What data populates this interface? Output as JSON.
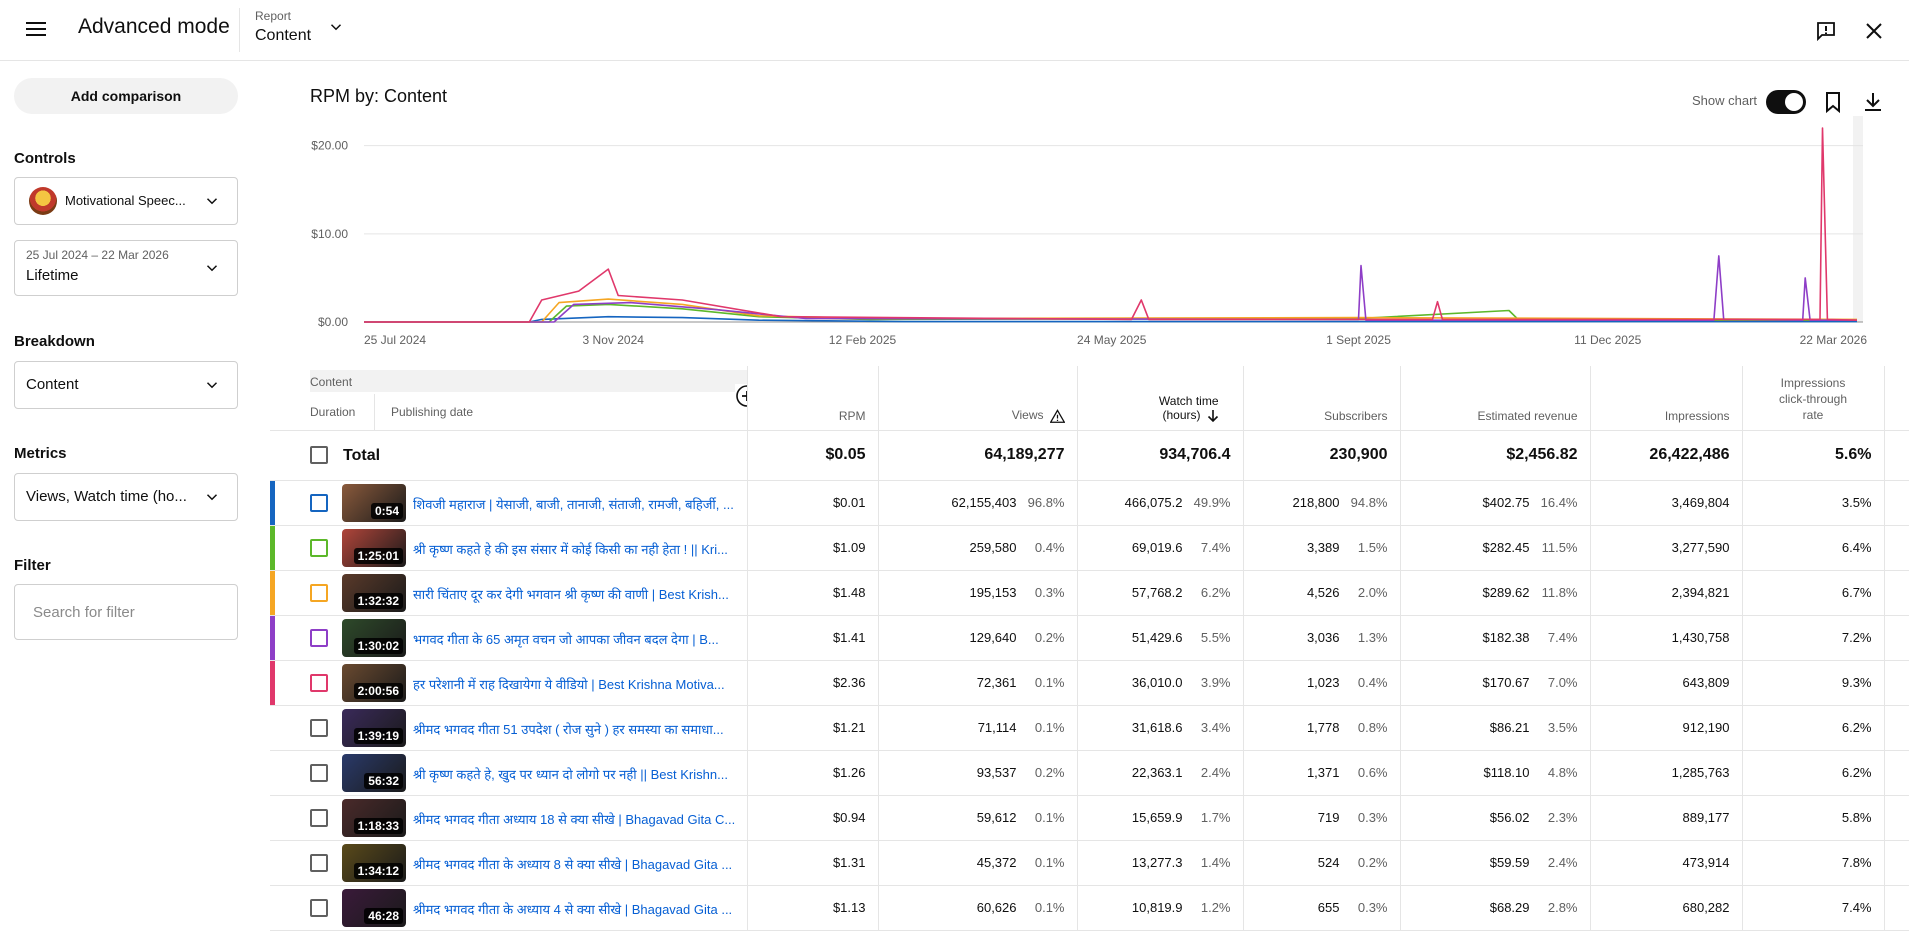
{
  "header": {
    "app_title": "Advanced mode",
    "report_label": "Report",
    "report_value": "Content"
  },
  "sidebar": {
    "add_comparison": "Add comparison",
    "controls_heading": "Controls",
    "channel_name": "Motivational Speec...",
    "date_range": "25 Jul 2024 – 22 Mar 2026",
    "date_preset": "Lifetime",
    "breakdown_heading": "Breakdown",
    "breakdown_value": "Content",
    "metrics_heading": "Metrics",
    "metrics_value": "Views, Watch time (ho...",
    "filter_heading": "Filter",
    "filter_placeholder": "Search for filter"
  },
  "chart": {
    "title": "RPM by: Content",
    "show_chart_label": "Show chart"
  },
  "chart_data": {
    "type": "line",
    "title": "RPM by: Content",
    "y_ticks": [
      "$20.00",
      "$10.00",
      "$0.00"
    ],
    "ylim": [
      0,
      22
    ],
    "x_ticks": [
      "25 Jul 2024",
      "3 Nov 2024",
      "12 Feb 2025",
      "24 May 2025",
      "1 Sept 2025",
      "11 Dec 2025",
      "22 Mar 2026"
    ],
    "x_start": "2024-07-25",
    "x_end": "2026-03-22",
    "series_colors": [
      "#1565c0",
      "#5cb82a",
      "#f5a623",
      "#8e3ec7",
      "#e0386b"
    ],
    "series": [
      {
        "color": "#1565c0",
        "points": [
          [
            "2024-07-25",
            0
          ],
          [
            "2024-09-30",
            0
          ],
          [
            "2024-10-05",
            0.3
          ],
          [
            "2024-11-01",
            0.6
          ],
          [
            "2024-12-01",
            0.5
          ],
          [
            "2025-01-01",
            0.2
          ],
          [
            "2025-03-01",
            0.05
          ],
          [
            "2026-03-22",
            0.05
          ]
        ]
      },
      {
        "color": "#5cb82a",
        "points": [
          [
            "2024-07-25",
            0
          ],
          [
            "2024-10-08",
            0
          ],
          [
            "2024-10-15",
            1.8
          ],
          [
            "2024-11-01",
            2.0
          ],
          [
            "2024-12-01",
            1.5
          ],
          [
            "2025-01-01",
            0.6
          ],
          [
            "2025-02-15",
            0.3
          ],
          [
            "2025-09-01",
            0.4
          ],
          [
            "2025-11-01",
            1.3
          ],
          [
            "2025-11-05",
            0.2
          ],
          [
            "2026-03-22",
            0.2
          ]
        ]
      },
      {
        "color": "#f5a623",
        "points": [
          [
            "2024-07-25",
            0
          ],
          [
            "2024-10-05",
            0
          ],
          [
            "2024-10-12",
            2.2
          ],
          [
            "2024-11-01",
            2.6
          ],
          [
            "2024-12-01",
            2.0
          ],
          [
            "2025-01-01",
            0.7
          ],
          [
            "2025-02-20",
            0.4
          ],
          [
            "2025-09-01",
            0.5
          ],
          [
            "2026-03-22",
            0.3
          ]
        ]
      },
      {
        "color": "#8e3ec7",
        "points": [
          [
            "2024-07-25",
            0
          ],
          [
            "2024-10-10",
            0
          ],
          [
            "2024-10-18",
            2.0
          ],
          [
            "2024-11-10",
            2.2
          ],
          [
            "2024-12-15",
            1.4
          ],
          [
            "2025-01-20",
            0.4
          ],
          [
            "2025-09-01",
            0.3
          ],
          [
            "2025-09-02",
            6.4
          ],
          [
            "2025-09-04",
            0.2
          ],
          [
            "2026-01-23",
            0.2
          ],
          [
            "2026-01-25",
            7.5
          ],
          [
            "2026-01-27",
            0.3
          ],
          [
            "2026-02-28",
            0.2
          ],
          [
            "2026-03-01",
            5.0
          ],
          [
            "2026-03-03",
            0.2
          ],
          [
            "2026-03-22",
            0.2
          ]
        ]
      },
      {
        "color": "#e0386b",
        "points": [
          [
            "2024-07-25",
            0
          ],
          [
            "2024-09-30",
            0
          ],
          [
            "2024-10-05",
            2.5
          ],
          [
            "2024-10-20",
            3.5
          ],
          [
            "2024-11-01",
            6.0
          ],
          [
            "2024-11-05",
            3.0
          ],
          [
            "2024-12-01",
            2.5
          ],
          [
            "2025-01-10",
            0.6
          ],
          [
            "2025-06-01",
            0.3
          ],
          [
            "2025-06-05",
            2.5
          ],
          [
            "2025-06-08",
            0.3
          ],
          [
            "2025-10-01",
            0.3
          ],
          [
            "2025-10-03",
            2.3
          ],
          [
            "2025-10-05",
            0.3
          ],
          [
            "2026-03-07",
            0.3
          ],
          [
            "2026-03-08",
            22
          ],
          [
            "2026-03-10",
            0.3
          ],
          [
            "2026-03-22",
            0.2
          ]
        ]
      }
    ]
  },
  "table": {
    "headers": {
      "content": "Content",
      "duration": "Duration",
      "publishing_date": "Publishing date",
      "rpm": "RPM",
      "views": "Views",
      "watch_time_1": "Watch time",
      "watch_time_2": "(hours)",
      "subscribers": "Subscribers",
      "estimated_revenue": "Estimated revenue",
      "impressions": "Impressions",
      "ctr_1": "Impressions",
      "ctr_2": "click-through",
      "ctr_3": "rate"
    },
    "total": {
      "label": "Total",
      "rpm": "$0.05",
      "views": "64,189,277",
      "watch_time": "934,706.4",
      "subscribers": "230,900",
      "revenue": "$2,456.82",
      "impressions": "26,422,486",
      "ctr": "5.6%"
    },
    "rows": [
      {
        "color": "#1565c0",
        "checked_color": "#1565c0",
        "duration": "0:54",
        "thumb": "#8a5a3c",
        "title": "शिवजी महाराज | येसाजी, बाजी, तानाजी, संताजी, रामजी, बहिर्जी, ...",
        "rpm": "$0.01",
        "views": "62,155,403",
        "views_pct": "96.8%",
        "watch": "466,075.2",
        "watch_pct": "49.9%",
        "subs": "218,800",
        "subs_pct": "94.8%",
        "rev": "$402.75",
        "rev_pct": "16.4%",
        "impr": "3,469,804",
        "ctr": "3.5%"
      },
      {
        "color": "#5cb82a",
        "checked_color": "#5cb82a",
        "duration": "1:25:01",
        "thumb": "#b0453a",
        "title": "श्री कृष्ण कहते हे की इस संसार में कोई किसी का नही हेता ! || Kri...",
        "rpm": "$1.09",
        "views": "259,580",
        "views_pct": "0.4%",
        "watch": "69,019.6",
        "watch_pct": "7.4%",
        "subs": "3,389",
        "subs_pct": "1.5%",
        "rev": "$282.45",
        "rev_pct": "11.5%",
        "impr": "3,277,590",
        "ctr": "6.4%"
      },
      {
        "color": "#f5a623",
        "checked_color": "#f5a623",
        "duration": "1:32:32",
        "thumb": "#5a3a2a",
        "title": "सारी चिंताए दूर कर देगी भगवान श्री कृष्ण की वाणी | Best Krish...",
        "rpm": "$1.48",
        "views": "195,153",
        "views_pct": "0.3%",
        "watch": "57,768.2",
        "watch_pct": "6.2%",
        "subs": "4,526",
        "subs_pct": "2.0%",
        "rev": "$289.62",
        "rev_pct": "11.8%",
        "impr": "2,394,821",
        "ctr": "6.7%"
      },
      {
        "color": "#8e3ec7",
        "checked_color": "#8e3ec7",
        "duration": "1:30:02",
        "thumb": "#2e4a2a",
        "title": "भगवद गीता के 65 अमृत वचन जो आपका जीवन बदल देगा | B...",
        "rpm": "$1.41",
        "views": "129,640",
        "views_pct": "0.2%",
        "watch": "51,429.6",
        "watch_pct": "5.5%",
        "subs": "3,036",
        "subs_pct": "1.3%",
        "rev": "$182.38",
        "rev_pct": "7.4%",
        "impr": "1,430,758",
        "ctr": "7.2%"
      },
      {
        "color": "#e0386b",
        "checked_color": "#e0386b",
        "duration": "2:00:56",
        "thumb": "#6a4a30",
        "title": "हर परेशानी में राह दिखायेगा ये वीडियो | Best Krishna Motiva...",
        "rpm": "$2.36",
        "views": "72,361",
        "views_pct": "0.1%",
        "watch": "36,010.0",
        "watch_pct": "3.9%",
        "subs": "1,023",
        "subs_pct": "0.4%",
        "rev": "$170.67",
        "rev_pct": "7.0%",
        "impr": "643,809",
        "ctr": "9.3%"
      },
      {
        "color": "",
        "checked_color": "#606060",
        "duration": "1:39:19",
        "thumb": "#3a2a5a",
        "title": "श्रीमद भगवद गीता 51 उपदेश ( रोज सुने ) हर समस्या का समाधा...",
        "rpm": "$1.21",
        "views": "71,114",
        "views_pct": "0.1%",
        "watch": "31,618.6",
        "watch_pct": "3.4%",
        "subs": "1,778",
        "subs_pct": "0.8%",
        "rev": "$86.21",
        "rev_pct": "3.5%",
        "impr": "912,190",
        "ctr": "6.2%"
      },
      {
        "color": "",
        "checked_color": "#606060",
        "duration": "56:32",
        "thumb": "#2a3a6a",
        "title": "श्री कृष्ण कहते हे, खुद पर ध्यान दो लोगो पर नही || Best Krishn...",
        "rpm": "$1.26",
        "views": "93,537",
        "views_pct": "0.2%",
        "watch": "22,363.1",
        "watch_pct": "2.4%",
        "subs": "1,371",
        "subs_pct": "0.6%",
        "rev": "$118.10",
        "rev_pct": "4.8%",
        "impr": "1,285,763",
        "ctr": "6.2%"
      },
      {
        "color": "",
        "checked_color": "#606060",
        "duration": "1:18:33",
        "thumb": "#4a2a2a",
        "title": "श्रीमद भगवद गीता अध्याय 18 से क्या सीखे | Bhagavad Gita C...",
        "rpm": "$0.94",
        "views": "59,612",
        "views_pct": "0.1%",
        "watch": "15,659.9",
        "watch_pct": "1.7%",
        "subs": "719",
        "subs_pct": "0.3%",
        "rev": "$56.02",
        "rev_pct": "2.3%",
        "impr": "889,177",
        "ctr": "5.8%"
      },
      {
        "color": "",
        "checked_color": "#606060",
        "duration": "1:34:12",
        "thumb": "#5a4a1a",
        "title": "श्रीमद भगवद गीता के अध्याय 8 से क्या सीखे | Bhagavad Gita ...",
        "rpm": "$1.31",
        "views": "45,372",
        "views_pct": "0.1%",
        "watch": "13,277.3",
        "watch_pct": "1.4%",
        "subs": "524",
        "subs_pct": "0.2%",
        "rev": "$59.59",
        "rev_pct": "2.4%",
        "impr": "473,914",
        "ctr": "7.8%"
      },
      {
        "color": "",
        "checked_color": "#606060",
        "duration": "46:28",
        "thumb": "#3a1a3a",
        "title": "श्रीमद भगवद गीता के अध्याय 4 से क्या सीखे | Bhagavad Gita ...",
        "rpm": "$1.13",
        "views": "60,626",
        "views_pct": "0.1%",
        "watch": "10,819.9",
        "watch_pct": "1.2%",
        "subs": "655",
        "subs_pct": "0.3%",
        "rev": "$68.29",
        "rev_pct": "2.8%",
        "impr": "680,282",
        "ctr": "7.4%"
      }
    ]
  }
}
